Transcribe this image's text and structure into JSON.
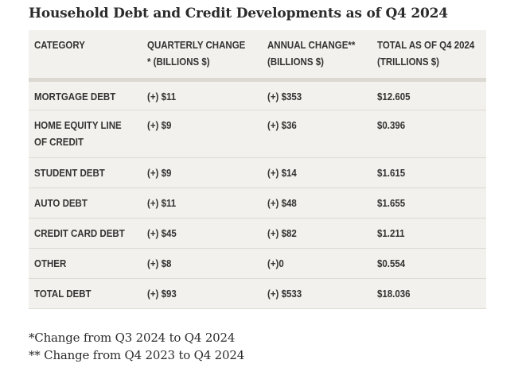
{
  "title": "Household Debt and Credit Developments as of Q4 2024",
  "table": {
    "headers": {
      "category": [
        "CATEGORY"
      ],
      "quarterly": [
        "QUARTERLY CHANGE",
        "* (BILLIONS $)"
      ],
      "annual": [
        "ANNUAL CHANGE**",
        "(BILLIONS $)"
      ],
      "total": [
        "TOTAL AS OF Q4 2024",
        "(TRILLIONS $)"
      ]
    },
    "rows": [
      {
        "category": [
          "MORTGAGE DEBT"
        ],
        "quarterly": "(+) $11",
        "annual": "(+) $353",
        "total": "$12.605"
      },
      {
        "category": [
          "HOME EQUITY LINE",
          "OF CREDIT"
        ],
        "quarterly": "(+) $9",
        "annual": "(+) $36",
        "total": "$0.396"
      },
      {
        "category": [
          "STUDENT DEBT"
        ],
        "quarterly": "(+) $9",
        "annual": "(+) $14",
        "total": "$1.615"
      },
      {
        "category": [
          "AUTO DEBT"
        ],
        "quarterly": "(+) $11",
        "annual": "(+) $48",
        "total": "$1.655"
      },
      {
        "category": [
          "CREDIT CARD DEBT"
        ],
        "quarterly": "(+) $45",
        "annual": "(+) $82",
        "total": "$1.211"
      },
      {
        "category": [
          "OTHER"
        ],
        "quarterly": "(+) $8",
        "annual": "(+)0",
        "total": "$0.554"
      },
      {
        "category": [
          "TOTAL DEBT"
        ],
        "quarterly": "(+) $93",
        "annual": "(+) $533",
        "total": "$18.036"
      }
    ]
  },
  "footnotes": [
    "*Change from Q3 2024 to Q4 2024",
    "** Change from Q4 2023 to Q4 2024"
  ]
}
